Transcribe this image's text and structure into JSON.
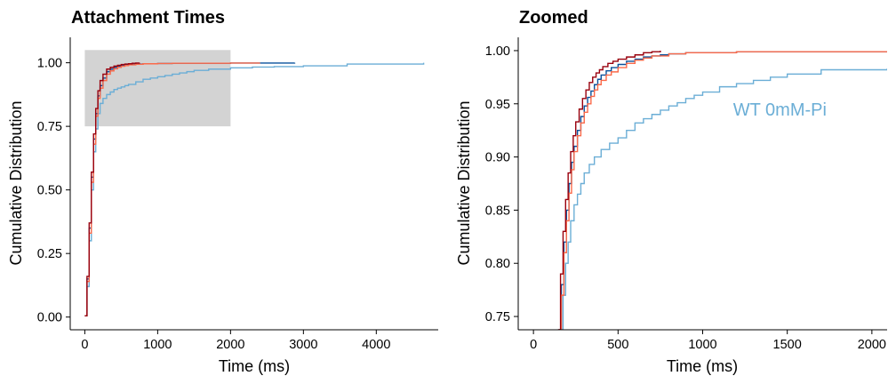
{
  "chart_data": [
    {
      "type": "line",
      "subtype": "ecdf",
      "title": "Attachment Times",
      "xlabel": "Time (ms)",
      "ylabel": "Cumulative Distribution",
      "xlim": [
        -200,
        4850
      ],
      "ylim": [
        -0.05,
        1.1
      ],
      "xticks": [
        0,
        1000,
        2000,
        3000,
        4000
      ],
      "xtick_labels": [
        "0",
        "1000",
        "2000",
        "3000",
        "4000"
      ],
      "yticks": [
        0.0,
        0.25,
        0.5,
        0.75,
        1.0
      ],
      "ytick_labels": [
        "0.00",
        "0.25",
        "0.50",
        "0.75",
        "1.00"
      ],
      "grid": false,
      "zoom_box": {
        "x": [
          0,
          2000
        ],
        "y": [
          0.75,
          1.05
        ],
        "color": "#d3d3d3"
      },
      "series": [
        {
          "color": "#6baed6",
          "x": [
            0,
            30,
            60,
            90,
            120,
            150,
            180,
            210,
            250,
            300,
            350,
            400,
            450,
            500,
            550,
            600,
            700,
            800,
            900,
            1000,
            1100,
            1200,
            1300,
            1400,
            1500,
            1700,
            2000,
            2300,
            2600,
            3000,
            3600,
            4650
          ],
          "y": [
            0.005,
            0.12,
            0.3,
            0.5,
            0.65,
            0.74,
            0.8,
            0.84,
            0.86,
            0.875,
            0.885,
            0.895,
            0.9,
            0.905,
            0.91,
            0.915,
            0.925,
            0.935,
            0.94,
            0.945,
            0.95,
            0.955,
            0.96,
            0.965,
            0.97,
            0.975,
            0.98,
            0.983,
            0.985,
            0.988,
            0.995,
            1.0
          ]
        },
        {
          "color": "#08519c",
          "x": [
            0,
            30,
            60,
            90,
            120,
            150,
            180,
            210,
            250,
            300,
            350,
            400,
            450,
            500,
            550,
            600,
            700,
            800,
            1000,
            1200,
            1500,
            2000,
            2880
          ],
          "y": [
            0.005,
            0.15,
            0.35,
            0.55,
            0.7,
            0.8,
            0.87,
            0.91,
            0.94,
            0.965,
            0.975,
            0.982,
            0.987,
            0.99,
            0.992,
            0.994,
            0.995,
            0.996,
            0.997,
            0.998,
            0.998,
            0.999,
            1.0
          ]
        },
        {
          "color": "#fb6a4a",
          "x": [
            0,
            30,
            60,
            90,
            120,
            150,
            180,
            210,
            250,
            300,
            350,
            400,
            450,
            500,
            550,
            600,
            700,
            800,
            1000,
            1200,
            1500,
            2000,
            2400
          ],
          "y": [
            0.005,
            0.14,
            0.33,
            0.53,
            0.68,
            0.79,
            0.86,
            0.9,
            0.93,
            0.955,
            0.968,
            0.976,
            0.982,
            0.986,
            0.989,
            0.992,
            0.994,
            0.996,
            0.997,
            0.998,
            0.998,
            0.999,
            1.0
          ]
        },
        {
          "color": "#99000d",
          "x": [
            0,
            30,
            60,
            90,
            120,
            150,
            180,
            210,
            250,
            300,
            350,
            400,
            450,
            500,
            550,
            600,
            650,
            700,
            750
          ],
          "y": [
            0.005,
            0.16,
            0.37,
            0.57,
            0.72,
            0.82,
            0.89,
            0.93,
            0.955,
            0.975,
            0.982,
            0.987,
            0.99,
            0.993,
            0.995,
            0.996,
            0.998,
            0.999,
            1.0
          ]
        }
      ]
    },
    {
      "type": "line",
      "subtype": "ecdf",
      "title": "Zoomed",
      "xlabel": "Time (ms)",
      "ylabel": "Cumulative Distribution",
      "xlim": [
        -90,
        2090
      ],
      "ylim": [
        0.7375,
        1.0125
      ],
      "xticks": [
        0,
        500,
        1000,
        1500,
        2000
      ],
      "xtick_labels": [
        "0",
        "500",
        "1000",
        "1500",
        "2000"
      ],
      "yticks": [
        0.75,
        0.8,
        0.85,
        0.9,
        0.95,
        1.0
      ],
      "ytick_labels": [
        "0.75",
        "0.80",
        "0.85",
        "0.90",
        "0.95",
        "1.00"
      ],
      "grid": false,
      "annotation": {
        "text": "WT 0mM-Pi",
        "x": 1180,
        "y": 0.945,
        "color": "#6baed6"
      },
      "series": [
        {
          "color": "#6baed6",
          "x": [
            160,
            175,
            190,
            205,
            220,
            240,
            260,
            280,
            300,
            330,
            360,
            400,
            450,
            500,
            550,
            600,
            650,
            700,
            750,
            800,
            850,
            900,
            950,
            1000,
            1100,
            1200,
            1300,
            1400,
            1500,
            1700,
            2090
          ],
          "y": [
            0.7375,
            0.77,
            0.8,
            0.82,
            0.84,
            0.855,
            0.865,
            0.875,
            0.885,
            0.893,
            0.9,
            0.907,
            0.913,
            0.918,
            0.925,
            0.932,
            0.936,
            0.94,
            0.944,
            0.948,
            0.951,
            0.955,
            0.958,
            0.961,
            0.966,
            0.969,
            0.972,
            0.975,
            0.978,
            0.982,
            0.983
          ]
        },
        {
          "color": "#08519c",
          "x": [
            150,
            165,
            180,
            195,
            210,
            225,
            240,
            260,
            280,
            300,
            320,
            340,
            360,
            380,
            400,
            430,
            460,
            500,
            550,
            600,
            650,
            700,
            750,
            800,
            900,
            1000,
            1200,
            1500,
            2090
          ],
          "y": [
            0.7375,
            0.78,
            0.82,
            0.85,
            0.875,
            0.895,
            0.91,
            0.925,
            0.938,
            0.948,
            0.956,
            0.962,
            0.968,
            0.973,
            0.977,
            0.981,
            0.984,
            0.987,
            0.99,
            0.992,
            0.994,
            0.995,
            0.996,
            0.997,
            0.998,
            0.998,
            0.999,
            0.999,
            0.999
          ]
        },
        {
          "color": "#fb6a4a",
          "x": [
            150,
            165,
            180,
            195,
            210,
            225,
            240,
            260,
            280,
            300,
            320,
            340,
            360,
            380,
            400,
            430,
            460,
            500,
            550,
            600,
            650,
            700,
            800,
            900,
            1000,
            1200,
            1500,
            2090
          ],
          "y": [
            0.7375,
            0.77,
            0.81,
            0.84,
            0.866,
            0.888,
            0.905,
            0.92,
            0.932,
            0.942,
            0.95,
            0.957,
            0.963,
            0.968,
            0.972,
            0.977,
            0.98,
            0.984,
            0.988,
            0.991,
            0.993,
            0.995,
            0.997,
            0.998,
            0.998,
            0.999,
            0.999,
            0.999
          ]
        },
        {
          "color": "#99000d",
          "x": [
            145,
            160,
            175,
            190,
            205,
            220,
            235,
            250,
            270,
            290,
            310,
            330,
            350,
            370,
            390,
            410,
            440,
            470,
            500,
            550,
            600,
            650,
            700,
            750
          ],
          "y": [
            0.7375,
            0.79,
            0.83,
            0.86,
            0.885,
            0.905,
            0.92,
            0.933,
            0.945,
            0.955,
            0.963,
            0.97,
            0.975,
            0.979,
            0.982,
            0.985,
            0.988,
            0.99,
            0.992,
            0.994,
            0.996,
            0.998,
            0.999,
            1.0
          ]
        }
      ]
    }
  ]
}
